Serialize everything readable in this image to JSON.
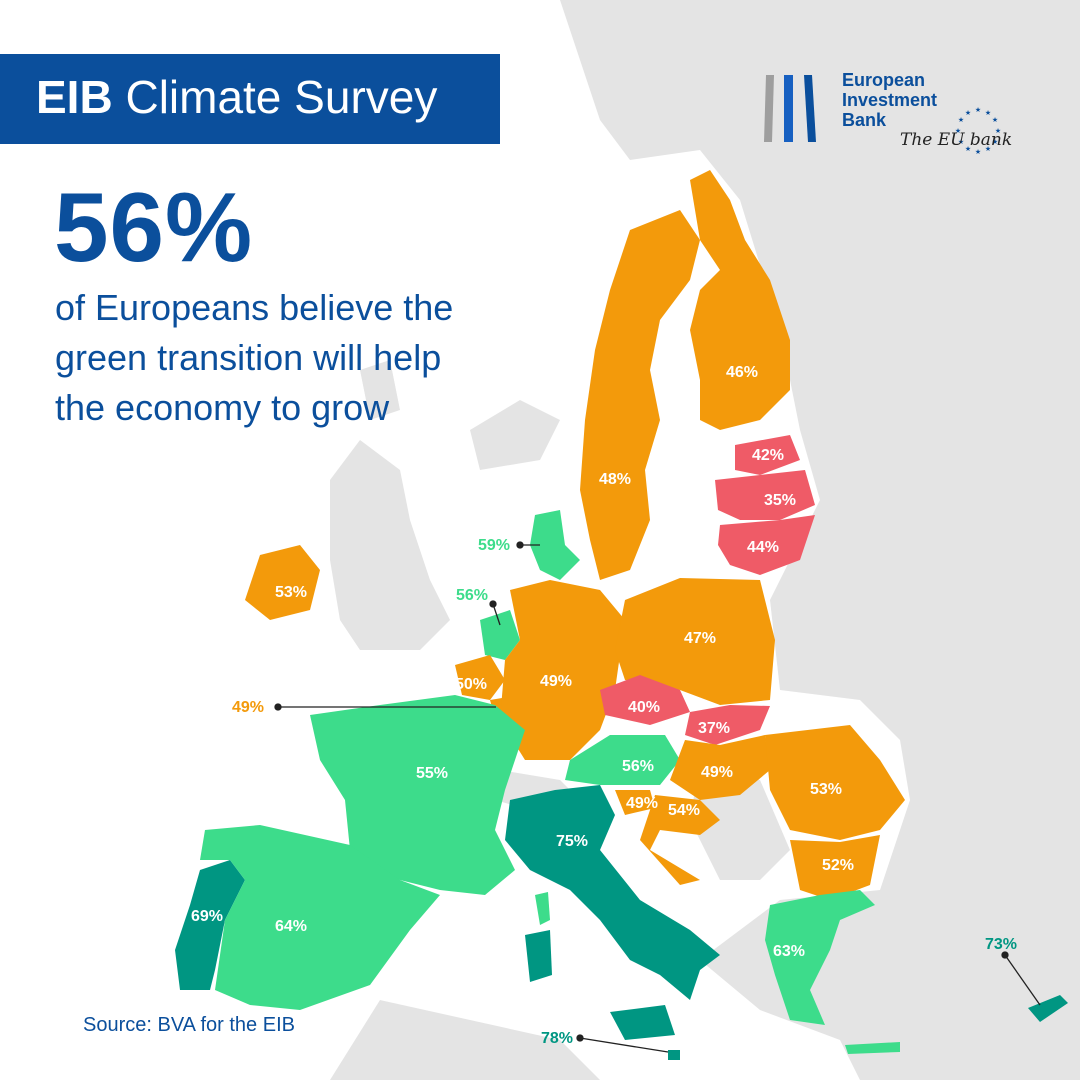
{
  "title": {
    "bold": "EIB",
    "rest": "Climate Survey"
  },
  "headline": {
    "stat": "56%",
    "text": "of Europeans believe the green transition will help the economy to grow"
  },
  "source": "Source: BVA for the EIB",
  "logo": {
    "line1": "European",
    "line2": "Investment",
    "line3": "Bank",
    "tagline": "The EU bank"
  },
  "colors": {
    "brand_blue": "#0b4f9c",
    "orange": "#f39a0b",
    "red": "#ef5b67",
    "light_green": "#3ddc8b",
    "teal": "#009682",
    "non_eu": "#e4e4e4"
  },
  "regions": {
    "sweden": "48%",
    "finland": "46%",
    "estonia": "42%",
    "latvia": "35%",
    "lithuania": "44%",
    "denmark": "59%",
    "ireland": "53%",
    "netherlands": "56%",
    "belgium": "50%",
    "luxembourg": "49%",
    "germany": "49%",
    "poland": "47%",
    "czechia": "40%",
    "slovakia": "37%",
    "austria": "56%",
    "hungary": "49%",
    "slovenia": "49%",
    "croatia": "54%",
    "romania": "53%",
    "bulgaria": "52%",
    "france": "55%",
    "italy": "75%",
    "portugal": "69%",
    "spain": "64%",
    "greece": "63%",
    "cyprus": "73%",
    "malta": "78%"
  }
}
